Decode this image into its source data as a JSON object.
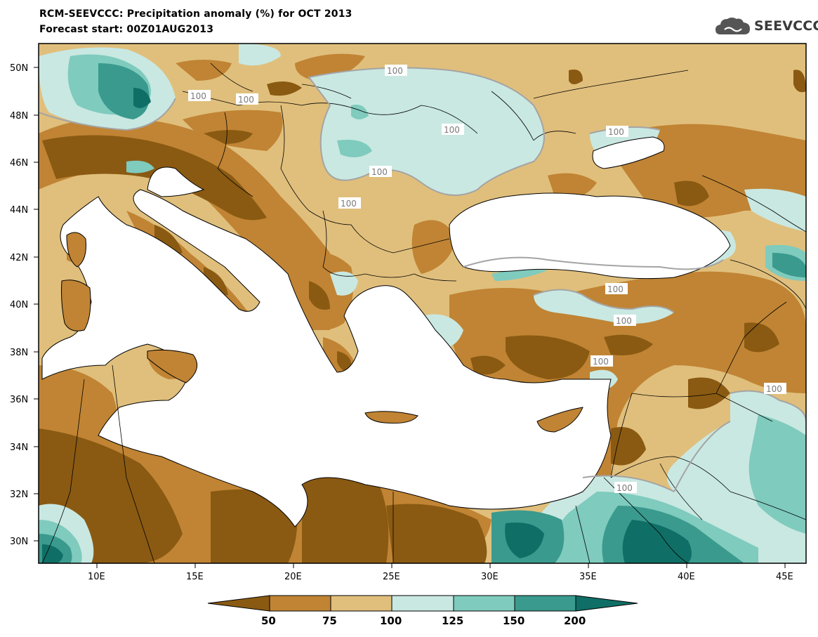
{
  "header": {
    "title": "RCM-SEEVCCC: Precipitation anomaly (%) for OCT 2013",
    "subtitle": "Forecast start: 00Z01AUG2013",
    "logo_text": "SEEVCCC"
  },
  "map": {
    "lat_ticks": [
      "50N",
      "48N",
      "46N",
      "44N",
      "42N",
      "40N",
      "38N",
      "36N",
      "34N",
      "32N",
      "30N"
    ],
    "lon_ticks": [
      "10E",
      "15E",
      "20E",
      "25E",
      "30E",
      "35E",
      "40E",
      "45E"
    ],
    "contour_labels": [
      "100",
      "100",
      "100",
      "100",
      "100",
      "100",
      "100",
      "100",
      "100",
      "100",
      "100",
      "100"
    ],
    "domain": {
      "lon_range": [
        7,
        46
      ],
      "lat_range": [
        29,
        51
      ]
    }
  },
  "colorbar": {
    "labels": [
      "50",
      "75",
      "100",
      "125",
      "150",
      "200"
    ],
    "colors": [
      "#8a5a12",
      "#c08434",
      "#e0bf7c",
      "#c9e8e2",
      "#7fcbbe",
      "#3a9a8e",
      "#0f6f66"
    ]
  }
}
